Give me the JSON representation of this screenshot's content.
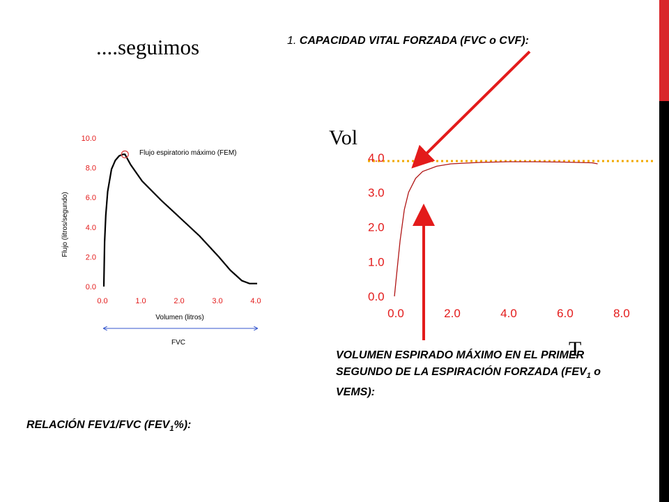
{
  "slide": {
    "title": "....seguimos",
    "heading_number": "1.",
    "heading": "CAPACIDAD VITAL FORZADA (FVC o CVF):",
    "fev1_caption_part1": "VOLUMEN ESPIRADO MÁXIMO EN EL PRIMER SEGUNDO DE LA ESPIRACIÓN FORZADA (FEV",
    "fev1_caption_sub": "1",
    "fev1_caption_part2": " o VEMS):",
    "ratio_caption_part1": "RELACIÓN FEV1/FVC (FEV",
    "ratio_caption_sub": "1",
    "ratio_caption_part2": "%):",
    "colors": {
      "accent": "#d9262a",
      "arrow": "#e31b1b",
      "guide": "#f2a900",
      "axis_labels": "#e31b1b",
      "fvc_arrow": "#3355cc"
    }
  },
  "chart_data": [
    {
      "type": "line",
      "ylabel": "Flujo (litros/segundo)",
      "xlabel": "Volumen (litros)",
      "x_ticks": [
        "0.0",
        "1.0",
        "2.0",
        "3.0",
        "4.0"
      ],
      "y_ticks": [
        "0.0",
        "2.0",
        "4.0",
        "6.0",
        "8.0",
        "10.0"
      ],
      "xlim": [
        0,
        4
      ],
      "ylim": [
        0,
        10
      ],
      "annotation": "Flujo espiratorio máximo (FEM)",
      "peak": {
        "x": 0.55,
        "y": 8.9
      },
      "range_label": "FVC",
      "series": [
        {
          "x": [
            0,
            0.02,
            0.05,
            0.1,
            0.2,
            0.3,
            0.4,
            0.5,
            0.55,
            0.7,
            1.0,
            1.5,
            2.0,
            2.5,
            3.0,
            3.3,
            3.6,
            3.8,
            4.0
          ],
          "y": [
            0.0,
            3.0,
            4.8,
            6.4,
            7.9,
            8.5,
            8.8,
            8.9,
            8.9,
            8.2,
            7.1,
            5.8,
            4.6,
            3.4,
            2.0,
            1.1,
            0.4,
            0.2,
            0.2
          ]
        }
      ]
    },
    {
      "type": "line",
      "ylabel": "Vol",
      "xlabel": "T",
      "x_ticks": [
        "0.0",
        "2.0",
        "4.0",
        "6.0",
        "8.0"
      ],
      "y_ticks": [
        "0.0",
        "1.0",
        "2.0",
        "3.0",
        "4.0"
      ],
      "xlim": [
        0,
        8
      ],
      "ylim": [
        0,
        4
      ],
      "guide_level": 4.0,
      "series": [
        {
          "x": [
            0,
            0.1,
            0.2,
            0.35,
            0.5,
            0.75,
            1.0,
            1.5,
            2.0,
            3.0,
            4.0,
            5.0,
            6.0,
            7.0,
            7.2
          ],
          "y": [
            0.0,
            0.8,
            1.6,
            2.5,
            3.0,
            3.4,
            3.6,
            3.75,
            3.82,
            3.86,
            3.88,
            3.88,
            3.87,
            3.85,
            3.82
          ]
        }
      ]
    }
  ]
}
